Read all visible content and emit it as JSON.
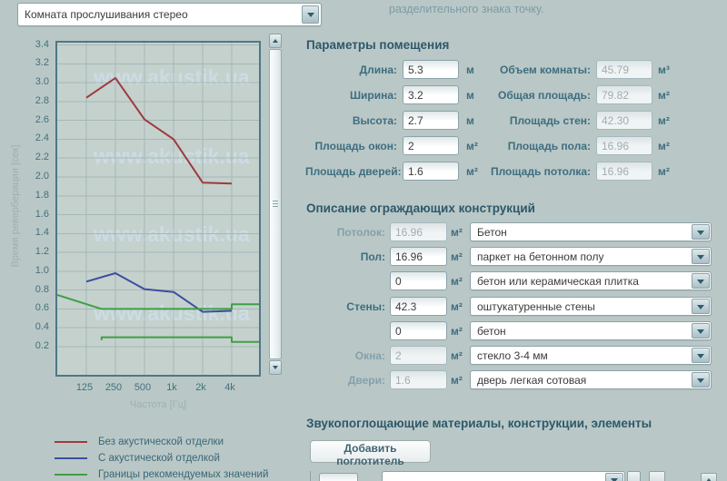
{
  "top_bar": {
    "room_preset": "Комната прослушивания стерео",
    "note": "разделительного знака точку."
  },
  "chart": {
    "watermark": "www.akustik.ua",
    "y_axis_title": "Время реверберации [сек]",
    "x_axis_title": "Частота [Гц]",
    "y_ticks": [
      "3.4",
      "3.2",
      "3.0",
      "2.8",
      "2.6",
      "2.4",
      "2.2",
      "2.0",
      "1.8",
      "1.6",
      "1.4",
      "1.2",
      "1.0",
      "0.8",
      "0.6",
      "0.4",
      "0.2"
    ],
    "x_ticks": [
      {
        "label": "125",
        "freq": 125
      },
      {
        "label": "250",
        "freq": 250
      },
      {
        "label": "500",
        "freq": 500
      },
      {
        "label": "1k",
        "freq": 1000
      },
      {
        "label": "2k",
        "freq": 2000
      },
      {
        "label": "4k",
        "freq": 4000
      }
    ],
    "legend": [
      {
        "label": "Без акустической отделки",
        "color": "#9e3a3e"
      },
      {
        "label": "С акустической отделкой",
        "color": "#3c4f9d"
      },
      {
        "label": "Границы рекомендуемых значений",
        "color": "#3f9f46"
      }
    ],
    "chart_data": {
      "type": "line",
      "x_scale": "log2",
      "xlabel": "Частота [Гц]",
      "ylabel": "Время реверберации [сек]",
      "xlim": [
        62.5,
        8000
      ],
      "ylim": [
        0,
        3.4
      ],
      "grid": true,
      "series": [
        {
          "name": "Без акустической отделки",
          "color": "#9e3a3e",
          "points": [
            [
              125,
              2.84
            ],
            [
              250,
              3.05
            ],
            [
              500,
              2.61
            ],
            [
              1000,
              2.4
            ],
            [
              2000,
              1.94
            ],
            [
              4000,
              1.93
            ]
          ]
        },
        {
          "name": "С акустической отделкой",
          "color": "#3c4f9d",
          "points": [
            [
              125,
              0.89
            ],
            [
              250,
              0.98
            ],
            [
              500,
              0.81
            ],
            [
              1000,
              0.78
            ],
            [
              2000,
              0.57
            ],
            [
              4000,
              0.58
            ]
          ]
        },
        {
          "name": "Границы рекомендуемых значений (верхняя)",
          "color": "#3f9f46",
          "points": [
            [
              62.5,
              0.75
            ],
            [
              180,
              0.6
            ],
            [
              4000,
              0.6
            ],
            [
              4000,
              0.65
            ],
            [
              8000,
              0.65
            ]
          ]
        },
        {
          "name": "Границы рекомендуемых значений (нижняя)",
          "color": "#3f9f46",
          "points": [
            [
              180,
              0.27
            ],
            [
              180,
              0.3
            ],
            [
              4000,
              0.3
            ],
            [
              4000,
              0.25
            ],
            [
              8000,
              0.25
            ]
          ]
        }
      ]
    }
  },
  "room_params": {
    "heading": "Параметры помещения",
    "col1": [
      {
        "label": "Длина:",
        "value": "5.3",
        "unit": "м"
      },
      {
        "label": "Ширина:",
        "value": "3.2",
        "unit": "м"
      },
      {
        "label": "Высота:",
        "value": "2.7",
        "unit": "м"
      },
      {
        "label": "Площадь окон:",
        "value": "2",
        "unit": "м²"
      },
      {
        "label": "Площадь дверей:",
        "value": "1.6",
        "unit": "м²"
      }
    ],
    "col2": [
      {
        "label": "Объем комнаты:",
        "value": "45.79",
        "unit": "м³"
      },
      {
        "label": "Общая площадь:",
        "value": "79.82",
        "unit": "м²"
      },
      {
        "label": "Площадь стен:",
        "value": "42.30",
        "unit": "м²"
      },
      {
        "label": "Площадь пола:",
        "value": "16.96",
        "unit": "м²"
      },
      {
        "label": "Площадь потолка:",
        "value": "16.96",
        "unit": "м²"
      }
    ]
  },
  "constructions": {
    "heading": "Описание ограждающих конструкций",
    "rows": [
      {
        "label": "Потолок:",
        "area": "16.96",
        "unit": "м²",
        "material": "Бетон"
      },
      {
        "label": "Пол:",
        "area": "16.96",
        "unit": "м²",
        "material": "паркет на бетонном полу"
      },
      {
        "label": "",
        "area": "0",
        "unit": "м²",
        "material": "бетон или керамическая плитка"
      },
      {
        "label": "Стены:",
        "area": "42.3",
        "unit": "м²",
        "material": "оштукатуренные стены"
      },
      {
        "label": "",
        "area": "0",
        "unit": "м²",
        "material": "бетон"
      },
      {
        "label": "Окна:",
        "area": "2",
        "unit": "м²",
        "material": "стекло 3-4 мм"
      },
      {
        "label": "Двери:",
        "area": "1.6",
        "unit": "м²",
        "material": "дверь легкая сотовая"
      }
    ]
  },
  "absorbers": {
    "heading": "Звукопоглощающие материалы, конструкции, элементы",
    "add_button": "Добавить поглотитель"
  }
}
